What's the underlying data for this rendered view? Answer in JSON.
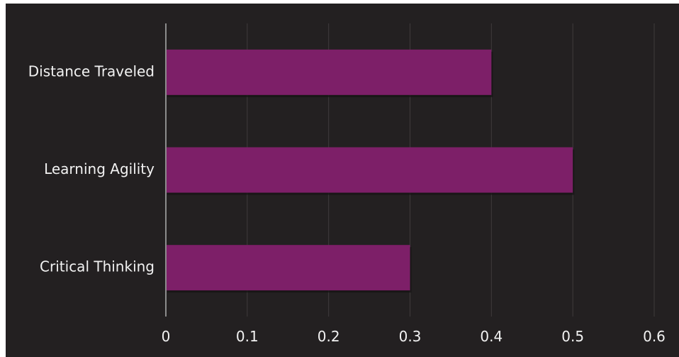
{
  "chart_data": {
    "type": "bar",
    "orientation": "horizontal",
    "categories": [
      "Distance Traveled",
      "Learning Agility",
      "Critical Thinking"
    ],
    "values": [
      0.4,
      0.5,
      0.3
    ],
    "xlim": [
      0,
      0.6
    ],
    "x_ticks": [
      "0",
      "0.1",
      "0.2",
      "0.3",
      "0.4",
      "0.5",
      "0.6"
    ],
    "title": "",
    "xlabel": "",
    "ylabel": "",
    "grid": "vertical",
    "legend": "none",
    "colors": {
      "background": "#232021",
      "bar": "#7d1f68",
      "bar_shadow": "#141213",
      "grid": "#3f3b3c",
      "axis": "#8c8c8c",
      "text": "#f2f2f2"
    }
  }
}
